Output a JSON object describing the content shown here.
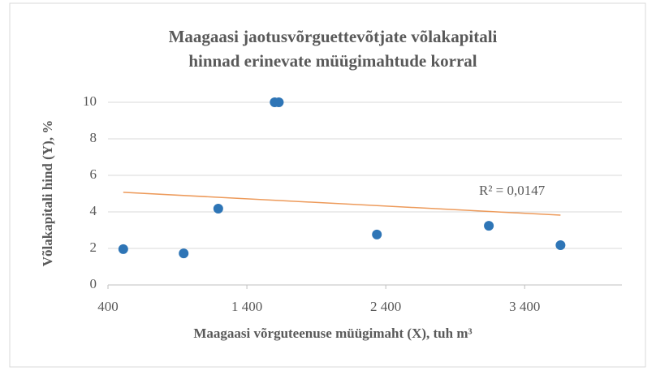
{
  "chart_data": {
    "type": "scatter",
    "title": [
      "Maagaasi jaotusvõrguettevõtjate  võlakapitali",
      "hinnad  erinevate müügimahtude korral"
    ],
    "xlabel": "Maagaasi võrguteenuse müügimaht (X), tuh m³",
    "ylabel": "Võlakapitali hind (Y), %",
    "series": [
      {
        "color": "#2e75b6",
        "x": [
          510,
          945,
          1194,
          1600,
          1630,
          2336,
          3142,
          3658
        ],
        "values": [
          1.96,
          1.73,
          4.18,
          10,
          10,
          2.76,
          3.24,
          2.18
        ]
      }
    ],
    "trendline": {
      "color": "#ed9a5a",
      "x": [
        510,
        3658
      ],
      "values": [
        5.07,
        3.82
      ],
      "annotation": "R² = 0,0147"
    },
    "xlim": [
      400,
      4100
    ],
    "xticks": [
      400,
      {
        "value": 1400,
        "label": "1 400"
      },
      {
        "value": 2400,
        "label": "2 400"
      },
      {
        "value": 3400,
        "label": "3 400"
      }
    ],
    "ylim": [
      0,
      10
    ],
    "yticks": [
      0,
      2,
      4,
      6,
      8,
      10
    ],
    "grid": true
  }
}
